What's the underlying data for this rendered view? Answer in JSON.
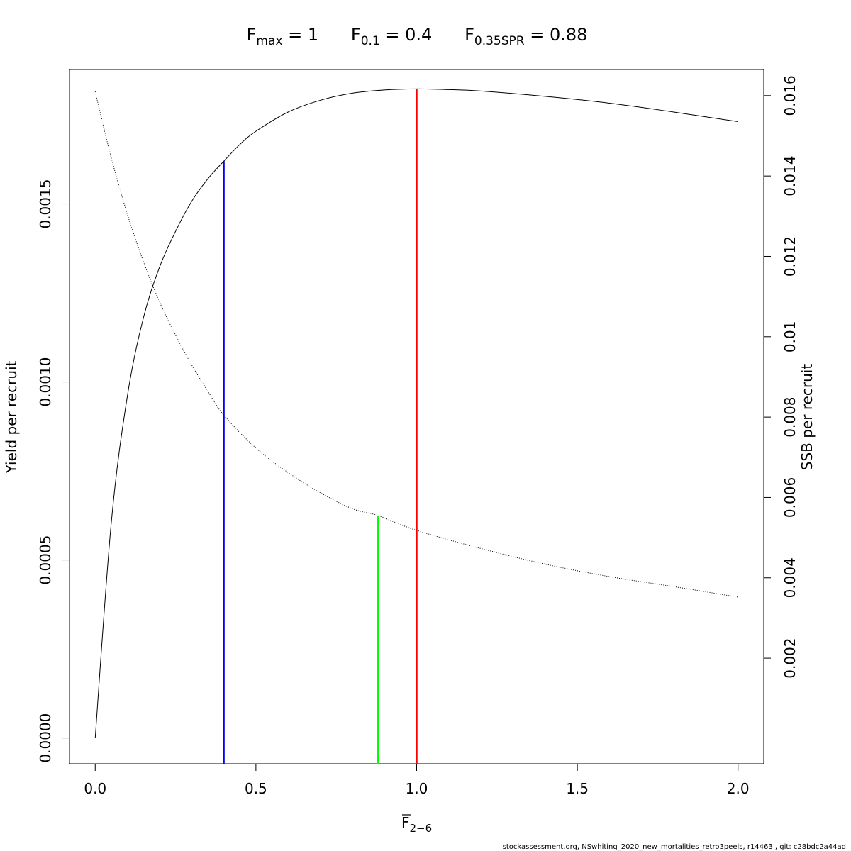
{
  "chart_data": {
    "type": "line",
    "title": {
      "fmax": {
        "base": "F",
        "sub": "max",
        "value": "1"
      },
      "f01": {
        "base": "F",
        "sub": "0.1",
        "value": "0.4"
      },
      "fspr": {
        "base": "F",
        "sub": "0.35SPR",
        "value": "0.88"
      }
    },
    "xlabel": {
      "base": "F",
      "sub": "2−6",
      "overbar": true
    },
    "ylabel_left": "Yield per recruit",
    "ylabel_right": "SSB per recruit",
    "xlim": [
      -0.08,
      2.08
    ],
    "ylim_left": [
      -7.25e-05,
      0.0018775
    ],
    "ylim_right": [
      -0.000628,
      0.01665
    ],
    "x_ticks": [
      {
        "value": 0.0,
        "label": "0.0"
      },
      {
        "value": 0.5,
        "label": "0.5"
      },
      {
        "value": 1.0,
        "label": "1.0"
      },
      {
        "value": 1.5,
        "label": "1.5"
      },
      {
        "value": 2.0,
        "label": "2.0"
      }
    ],
    "y_ticks_left": [
      {
        "value": 0.0,
        "label": "0.0000"
      },
      {
        "value": 0.0005,
        "label": "0.0005"
      },
      {
        "value": 0.001,
        "label": "0.0010"
      },
      {
        "value": 0.0015,
        "label": "0.0015"
      }
    ],
    "y_ticks_right": [
      {
        "value": 0.002,
        "label": "0.002"
      },
      {
        "value": 0.004,
        "label": "0.004"
      },
      {
        "value": 0.006,
        "label": "0.006"
      },
      {
        "value": 0.008,
        "label": "0.008"
      },
      {
        "value": 0.01,
        "label": "0.01"
      },
      {
        "value": 0.012,
        "label": "0.012"
      },
      {
        "value": 0.014,
        "label": "0.014"
      },
      {
        "value": 0.016,
        "label": "0.016"
      }
    ],
    "series": [
      {
        "axis": "left",
        "style": "solid",
        "x": [
          0,
          0.05,
          0.1,
          0.15,
          0.2,
          0.25,
          0.3,
          0.35,
          0.4,
          0.45,
          0.5,
          0.6,
          0.7,
          0.8,
          0.9,
          1.0,
          1.1,
          1.2,
          1.4,
          1.6,
          1.8,
          2.0
        ],
        "y": [
          0,
          0.000605,
          0.00096,
          0.00118,
          0.001322,
          0.001423,
          0.001507,
          0.00157,
          0.00162,
          0.001667,
          0.001704,
          0.001758,
          0.001791,
          0.001811,
          0.00182,
          0.001823,
          0.001821,
          0.001817,
          0.001802,
          0.001783,
          0.001758,
          0.001731
        ]
      },
      {
        "axis": "right",
        "style": "dotted",
        "x": [
          0,
          0.05,
          0.1,
          0.15,
          0.2,
          0.25,
          0.3,
          0.35,
          0.4,
          0.5,
          0.6,
          0.7,
          0.8,
          0.88,
          1.0,
          1.2,
          1.4,
          1.6,
          1.8,
          2.0
        ],
        "y": [
          0.0161,
          0.01445,
          0.01305,
          0.01187,
          0.01087,
          0.01004,
          0.0093,
          0.00865,
          0.00805,
          0.00723,
          0.00662,
          0.00612,
          0.00572,
          0.00555,
          0.00518,
          0.00473,
          0.00434,
          0.00403,
          0.00378,
          0.00352
        ]
      }
    ],
    "reference_lines": [
      {
        "x": 0.4,
        "axis": "left",
        "y_top": 0.00162,
        "color": "#0000ff"
      },
      {
        "x": 0.88,
        "axis": "right",
        "y_top": 0.00555,
        "color": "#00ff00"
      },
      {
        "x": 1.0,
        "axis": "left",
        "y_top": 0.001823,
        "color": "#ff0000"
      }
    ]
  },
  "footer": "stockassessment.org, NSwhiting_2020_new_mortalities_retro3peels, r14463 , git: c28bdc2a44ad"
}
